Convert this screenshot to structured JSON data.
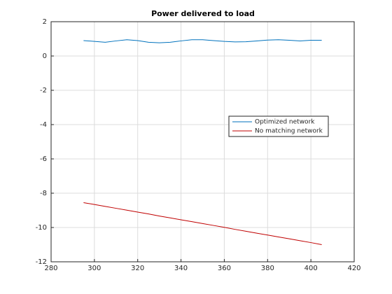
{
  "chart_data": {
    "type": "line",
    "title": "Power delivered to load",
    "x": [
      295,
      300,
      305,
      310,
      315,
      320,
      325,
      330,
      335,
      340,
      345,
      350,
      355,
      360,
      365,
      370,
      375,
      380,
      385,
      390,
      395,
      400,
      405
    ],
    "series": [
      {
        "name": "Optimized network",
        "color": "#0072bd",
        "values": [
          0.9,
          0.85,
          0.8,
          0.88,
          0.95,
          0.9,
          0.8,
          0.77,
          0.8,
          0.88,
          0.95,
          0.95,
          0.9,
          0.85,
          0.82,
          0.83,
          0.88,
          0.93,
          0.95,
          0.92,
          0.88,
          0.92,
          0.92
        ]
      },
      {
        "name": "No matching network",
        "color": "#c00000",
        "values": [
          -8.55,
          -8.66,
          -8.77,
          -8.88,
          -8.99,
          -9.1,
          -9.21,
          -9.33,
          -9.44,
          -9.55,
          -9.66,
          -9.77,
          -9.88,
          -9.99,
          -10.11,
          -10.22,
          -10.33,
          -10.44,
          -10.55,
          -10.66,
          -10.77,
          -10.88,
          -11.0
        ]
      }
    ],
    "xlim": [
      280,
      420
    ],
    "xticks": [
      280,
      300,
      320,
      340,
      360,
      380,
      400,
      420
    ],
    "ylim": [
      -12,
      2
    ],
    "yticks": [
      -12,
      -10,
      -8,
      -6,
      -4,
      -2,
      0,
      2
    ],
    "grid": true,
    "legend": "east"
  }
}
